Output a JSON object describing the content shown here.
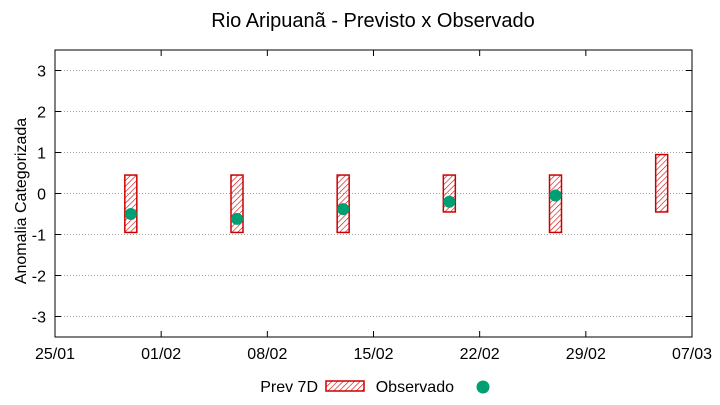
{
  "chart_data": {
    "type": "candlestick-range",
    "title": "Rio Aripuanã - Previsto x Observado",
    "ylabel": "Anomalia Categorizada",
    "xlabel": "",
    "ylim": [
      -3.5,
      3.5
    ],
    "yticks": [
      -3,
      -2,
      -1,
      0,
      1,
      2,
      3
    ],
    "x_range_days": [
      0,
      42
    ],
    "x_ticks": [
      {
        "day": 0,
        "label": "25/01"
      },
      {
        "day": 7,
        "label": "01/02"
      },
      {
        "day": 14,
        "label": "08/02"
      },
      {
        "day": 21,
        "label": "15/02"
      },
      {
        "day": 28,
        "label": "22/02"
      },
      {
        "day": 35,
        "label": "29/02"
      },
      {
        "day": 42,
        "label": "07/03"
      }
    ],
    "grid": true,
    "legend": {
      "position": "bottom",
      "forecast_label": "Prev 7D",
      "observed_label": "Observado"
    },
    "forecast": [
      {
        "day": 5,
        "low": -0.95,
        "high": 0.45
      },
      {
        "day": 12,
        "low": -0.95,
        "high": 0.45
      },
      {
        "day": 19,
        "low": -0.95,
        "high": 0.45
      },
      {
        "day": 26,
        "low": -0.45,
        "high": 0.45
      },
      {
        "day": 33,
        "low": -0.95,
        "high": 0.45
      },
      {
        "day": 40,
        "low": -0.45,
        "high": 0.95
      }
    ],
    "observed": [
      {
        "day": 5,
        "value": -0.5
      },
      {
        "day": 12,
        "value": -0.62
      },
      {
        "day": 19,
        "value": -0.38
      },
      {
        "day": 26,
        "value": -0.2
      },
      {
        "day": 33,
        "value": -0.05
      }
    ],
    "colors": {
      "forecast": "#cc0000",
      "observed": "#009e73",
      "grid": "#a0a0a0"
    }
  }
}
